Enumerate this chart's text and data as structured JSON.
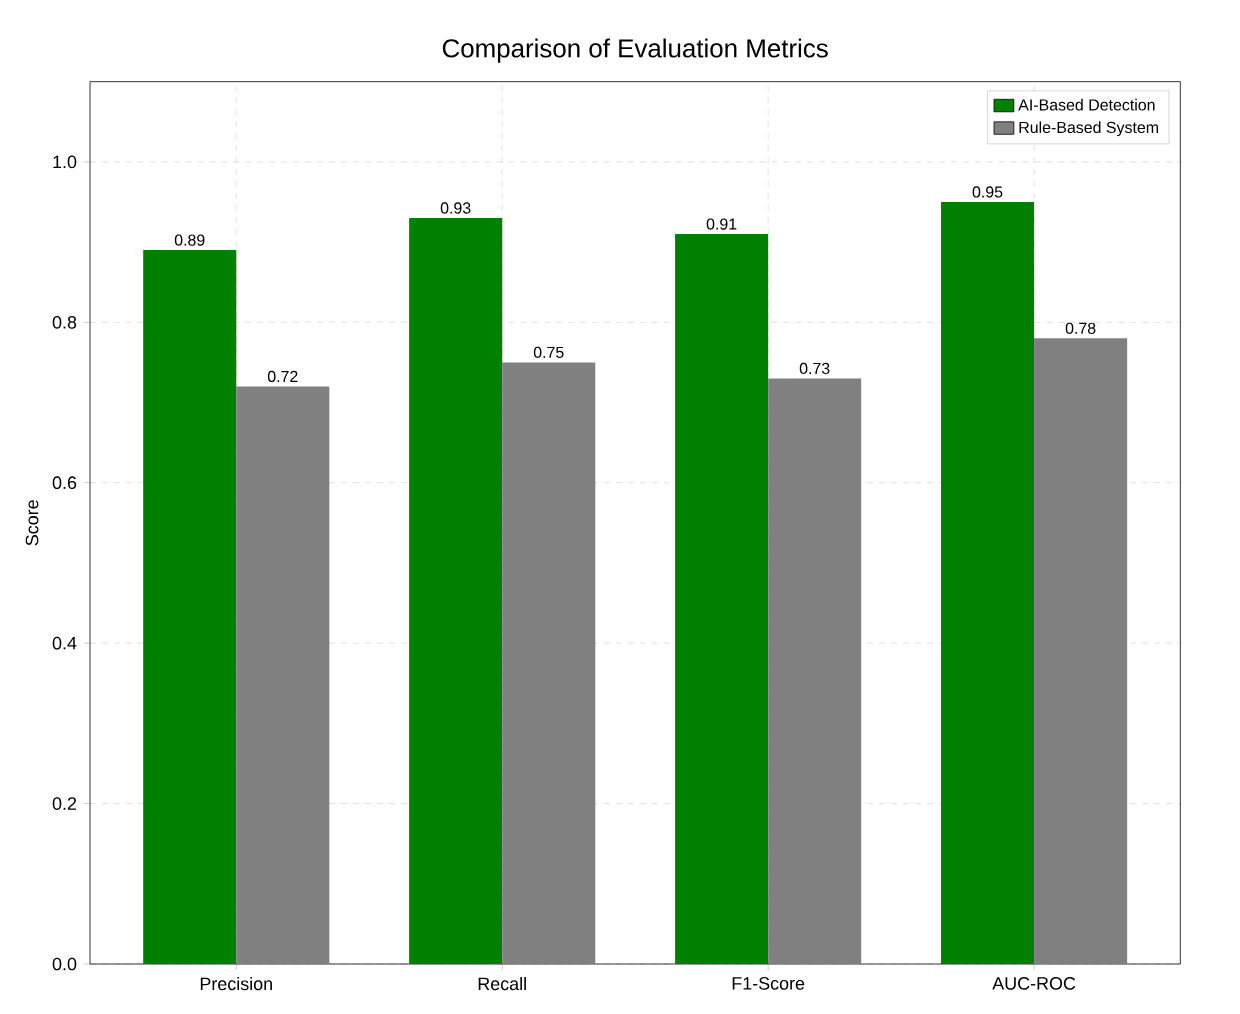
{
  "chart_data": {
    "type": "bar",
    "title": "Comparison of Evaluation Metrics",
    "ylabel": "Score",
    "categories": [
      "Precision",
      "Recall",
      "F1-Score",
      "AUC-ROC"
    ],
    "series": [
      {
        "name": "AI-Based Detection",
        "color": "#008000",
        "values": [
          0.89,
          0.93,
          0.91,
          0.95
        ]
      },
      {
        "name": "Rule-Based System",
        "color": "#808080",
        "values": [
          0.72,
          0.75,
          0.73,
          0.78
        ]
      }
    ],
    "ylim": [
      0,
      1.1
    ],
    "yticks": [
      {
        "value": 0,
        "label": "0.0"
      },
      0.2,
      0.4,
      0.6,
      0.8,
      {
        "value": 1,
        "label": "1.0"
      }
    ],
    "grid": true,
    "legend": "top right",
    "data_labels": true
  }
}
